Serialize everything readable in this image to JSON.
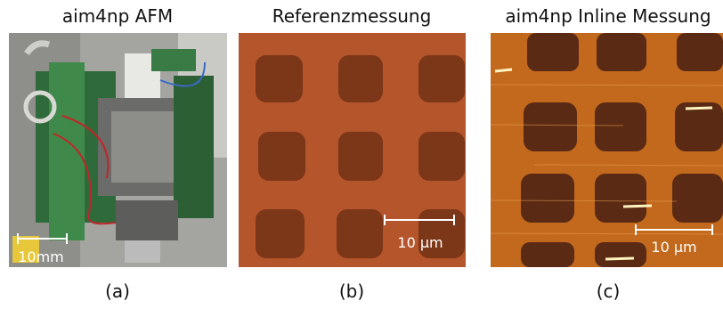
{
  "panels": [
    {
      "title": "aim4np AFM",
      "scale_label": "10mm",
      "caption": "(a)"
    },
    {
      "title": "Referenzmessung",
      "scale_label": "10 µm",
      "caption": "(b)"
    },
    {
      "title": "aim4np Inline Messung",
      "scale_label": "10 µm",
      "caption": "(c)"
    }
  ]
}
